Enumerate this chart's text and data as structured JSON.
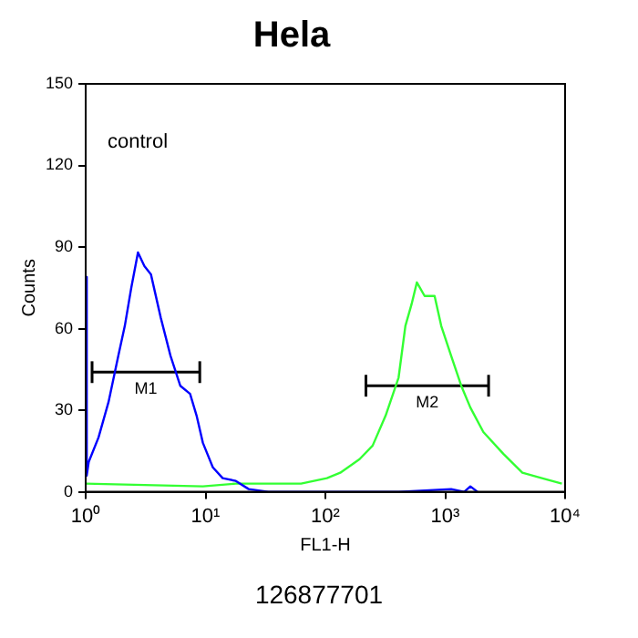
{
  "chart_data": {
    "type": "line",
    "title": "Hela",
    "xlabel": "FL1-H",
    "ylabel": "Counts",
    "log": "x",
    "xlim": [
      1,
      10000
    ],
    "xticks": [
      {
        "value": 1,
        "label": "10⁰"
      },
      {
        "value": 10,
        "label": "10¹"
      },
      {
        "value": 100,
        "label": "10²"
      },
      {
        "value": 1000,
        "label": "10³"
      },
      {
        "value": 10000,
        "label": "10⁴"
      }
    ],
    "ylim": [
      0,
      150
    ],
    "yticks": [
      0,
      30,
      60,
      90,
      120,
      150
    ],
    "grid": false,
    "legend": false,
    "marker": "none",
    "line_style": "solid",
    "annotations": [
      "control",
      "126877701"
    ],
    "series": [
      {
        "color": "#0000ff",
        "x": [
          1,
          1.02,
          1.06,
          1.28,
          1.55,
          1.87,
          2.12,
          2.4,
          2.73,
          3.09,
          3.5,
          4.23,
          5.1,
          6.15,
          7.43,
          8.42,
          9.5,
          11.5,
          13.9,
          17.9,
          22.9,
          33.4,
          410,
          1120,
          1440,
          1620,
          1860
        ],
        "values": [
          79,
          6,
          11,
          20,
          33,
          50,
          61,
          75,
          88,
          83,
          80,
          64,
          50,
          39,
          36,
          28,
          18,
          9,
          5,
          4,
          1,
          0,
          0,
          1,
          0,
          2,
          0
        ]
      },
      {
        "color": "#33ff33",
        "x": [
          1,
          9.5,
          17.9,
          62.6,
          103,
          133,
          193,
          248,
          318,
          408,
          465,
          524,
          580,
          673,
          815,
          926,
          1120,
          1360,
          1620,
          2080,
          3050,
          4400,
          6400,
          9400
        ],
        "values": [
          3,
          2,
          3,
          3,
          5,
          7,
          12,
          17,
          28,
          42,
          61,
          69,
          77,
          72,
          72,
          61,
          50,
          39,
          31,
          22,
          14,
          7,
          5,
          3
        ]
      },
      {
        "name": "M1",
        "color": "#000000",
        "x": [
          1.13,
          8.95
        ],
        "values": [
          44,
          44
        ],
        "errors": [
          4,
          4
        ]
      },
      {
        "name": "M2",
        "color": "#000000",
        "x": [
          218,
          2300
        ],
        "values": [
          39,
          39
        ],
        "errors": [
          4,
          4
        ]
      }
    ]
  }
}
